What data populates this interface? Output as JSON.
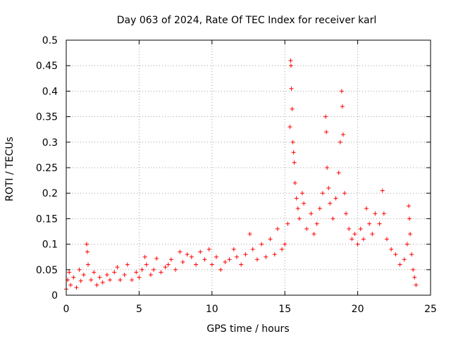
{
  "chart_data": {
    "type": "scatter",
    "title": "Day 063 of 2024, Rate Of TEC Index for receiver karl",
    "xlabel": "GPS time / hours",
    "ylabel": "ROTI / TECUs",
    "xlim": [
      0,
      25
    ],
    "ylim": [
      0,
      0.5
    ],
    "grid": true,
    "marker": "+",
    "series_color": "#ff0000",
    "x_ticks": [
      {
        "value": 0,
        "label": "0"
      },
      {
        "value": 5,
        "label": "5"
      },
      {
        "value": 10,
        "label": "10"
      },
      {
        "value": 15,
        "label": "15"
      },
      {
        "value": 20,
        "label": "20"
      },
      {
        "value": 25,
        "label": "25"
      }
    ],
    "y_ticks": [
      {
        "value": 0,
        "label": "0"
      },
      {
        "value": 0.05,
        "label": "0.05"
      },
      {
        "value": 0.1,
        "label": "0.1"
      },
      {
        "value": 0.15,
        "label": "0.15"
      },
      {
        "value": 0.2,
        "label": "0.2"
      },
      {
        "value": 0.25,
        "label": "0.25"
      },
      {
        "value": 0.3,
        "label": "0.3"
      },
      {
        "value": 0.35,
        "label": "0.35"
      },
      {
        "value": 0.4,
        "label": "0.4"
      },
      {
        "value": 0.45,
        "label": "0.45"
      },
      {
        "value": 0.5,
        "label": "0.5"
      }
    ],
    "series": [
      {
        "name": "ROTI",
        "points": [
          [
            0.0,
            0.012
          ],
          [
            0.1,
            0.03
          ],
          [
            0.2,
            0.045
          ],
          [
            0.3,
            0.02
          ],
          [
            0.5,
            0.035
          ],
          [
            0.7,
            0.015
          ],
          [
            0.9,
            0.05
          ],
          [
            1.0,
            0.028
          ],
          [
            1.2,
            0.04
          ],
          [
            1.4,
            0.1
          ],
          [
            1.45,
            0.085
          ],
          [
            1.5,
            0.06
          ],
          [
            1.7,
            0.03
          ],
          [
            1.9,
            0.045
          ],
          [
            2.1,
            0.02
          ],
          [
            2.3,
            0.035
          ],
          [
            2.5,
            0.025
          ],
          [
            2.8,
            0.04
          ],
          [
            3.0,
            0.03
          ],
          [
            3.3,
            0.045
          ],
          [
            3.5,
            0.055
          ],
          [
            3.7,
            0.03
          ],
          [
            4.0,
            0.04
          ],
          [
            4.2,
            0.06
          ],
          [
            4.5,
            0.03
          ],
          [
            4.8,
            0.045
          ],
          [
            5.0,
            0.035
          ],
          [
            5.2,
            0.05
          ],
          [
            5.4,
            0.075
          ],
          [
            5.5,
            0.06
          ],
          [
            5.8,
            0.04
          ],
          [
            6.0,
            0.05
          ],
          [
            6.2,
            0.072
          ],
          [
            6.5,
            0.045
          ],
          [
            6.8,
            0.055
          ],
          [
            7.0,
            0.06
          ],
          [
            7.2,
            0.07
          ],
          [
            7.5,
            0.05
          ],
          [
            7.8,
            0.085
          ],
          [
            8.0,
            0.065
          ],
          [
            8.3,
            0.08
          ],
          [
            8.6,
            0.075
          ],
          [
            8.9,
            0.06
          ],
          [
            9.2,
            0.085
          ],
          [
            9.5,
            0.07
          ],
          [
            9.8,
            0.09
          ],
          [
            10.0,
            0.06
          ],
          [
            10.3,
            0.075
          ],
          [
            10.6,
            0.05
          ],
          [
            10.9,
            0.065
          ],
          [
            11.2,
            0.07
          ],
          [
            11.5,
            0.09
          ],
          [
            11.7,
            0.075
          ],
          [
            12.0,
            0.06
          ],
          [
            12.3,
            0.08
          ],
          [
            12.6,
            0.12
          ],
          [
            12.8,
            0.09
          ],
          [
            13.1,
            0.07
          ],
          [
            13.4,
            0.1
          ],
          [
            13.7,
            0.075
          ],
          [
            14.0,
            0.11
          ],
          [
            14.3,
            0.08
          ],
          [
            14.5,
            0.13
          ],
          [
            14.8,
            0.09
          ],
          [
            15.0,
            0.1
          ],
          [
            15.2,
            0.14
          ],
          [
            15.35,
            0.33
          ],
          [
            15.4,
            0.46
          ],
          [
            15.42,
            0.45
          ],
          [
            15.45,
            0.405
          ],
          [
            15.5,
            0.365
          ],
          [
            15.55,
            0.3
          ],
          [
            15.6,
            0.28
          ],
          [
            15.65,
            0.26
          ],
          [
            15.7,
            0.22
          ],
          [
            15.8,
            0.19
          ],
          [
            15.9,
            0.17
          ],
          [
            16.0,
            0.15
          ],
          [
            16.2,
            0.2
          ],
          [
            16.3,
            0.18
          ],
          [
            16.5,
            0.13
          ],
          [
            16.8,
            0.16
          ],
          [
            17.0,
            0.12
          ],
          [
            17.2,
            0.14
          ],
          [
            17.4,
            0.17
          ],
          [
            17.6,
            0.2
          ],
          [
            17.8,
            0.35
          ],
          [
            17.85,
            0.32
          ],
          [
            17.9,
            0.25
          ],
          [
            18.0,
            0.21
          ],
          [
            18.1,
            0.18
          ],
          [
            18.3,
            0.15
          ],
          [
            18.5,
            0.19
          ],
          [
            18.7,
            0.24
          ],
          [
            18.8,
            0.3
          ],
          [
            18.9,
            0.4
          ],
          [
            18.95,
            0.37
          ],
          [
            19.0,
            0.315
          ],
          [
            19.1,
            0.2
          ],
          [
            19.2,
            0.16
          ],
          [
            19.4,
            0.13
          ],
          [
            19.6,
            0.11
          ],
          [
            19.8,
            0.12
          ],
          [
            20.0,
            0.1
          ],
          [
            20.2,
            0.13
          ],
          [
            20.4,
            0.11
          ],
          [
            20.6,
            0.17
          ],
          [
            20.8,
            0.14
          ],
          [
            21.0,
            0.12
          ],
          [
            21.2,
            0.16
          ],
          [
            21.5,
            0.14
          ],
          [
            21.7,
            0.205
          ],
          [
            21.8,
            0.16
          ],
          [
            22.0,
            0.11
          ],
          [
            22.3,
            0.09
          ],
          [
            22.6,
            0.08
          ],
          [
            22.9,
            0.06
          ],
          [
            23.2,
            0.07
          ],
          [
            23.4,
            0.1
          ],
          [
            23.5,
            0.175
          ],
          [
            23.55,
            0.15
          ],
          [
            23.6,
            0.12
          ],
          [
            23.7,
            0.08
          ],
          [
            23.8,
            0.05
          ],
          [
            23.9,
            0.035
          ],
          [
            24.0,
            0.02
          ]
        ]
      }
    ]
  }
}
